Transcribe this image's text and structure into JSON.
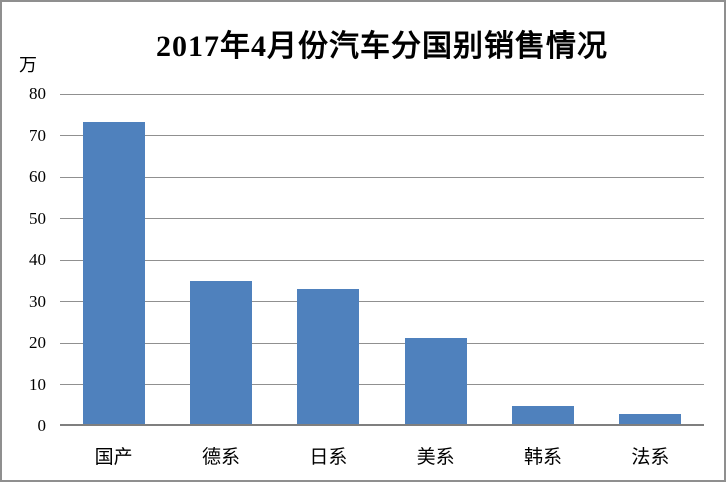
{
  "chart_data": {
    "type": "bar",
    "title": "2017年4月份汽车分国别销售情况",
    "unit_label": "万",
    "categories": [
      "国产",
      "德系",
      "日系",
      "美系",
      "韩系",
      "法系"
    ],
    "values": [
      73.3,
      35.0,
      33.1,
      21.3,
      4.7,
      2.8
    ],
    "ylim": [
      0,
      80
    ],
    "yticks": [
      80,
      70,
      60,
      50,
      40,
      30,
      20,
      10,
      0
    ],
    "grid": true,
    "legend": "none",
    "bar_color": "#4F81BD",
    "gridline_color": "#909090",
    "axis_line_color": "#7f7f7f",
    "border_color": "#8f8f8f",
    "background_color": "#FFFFFF",
    "text_color": "#000000"
  }
}
